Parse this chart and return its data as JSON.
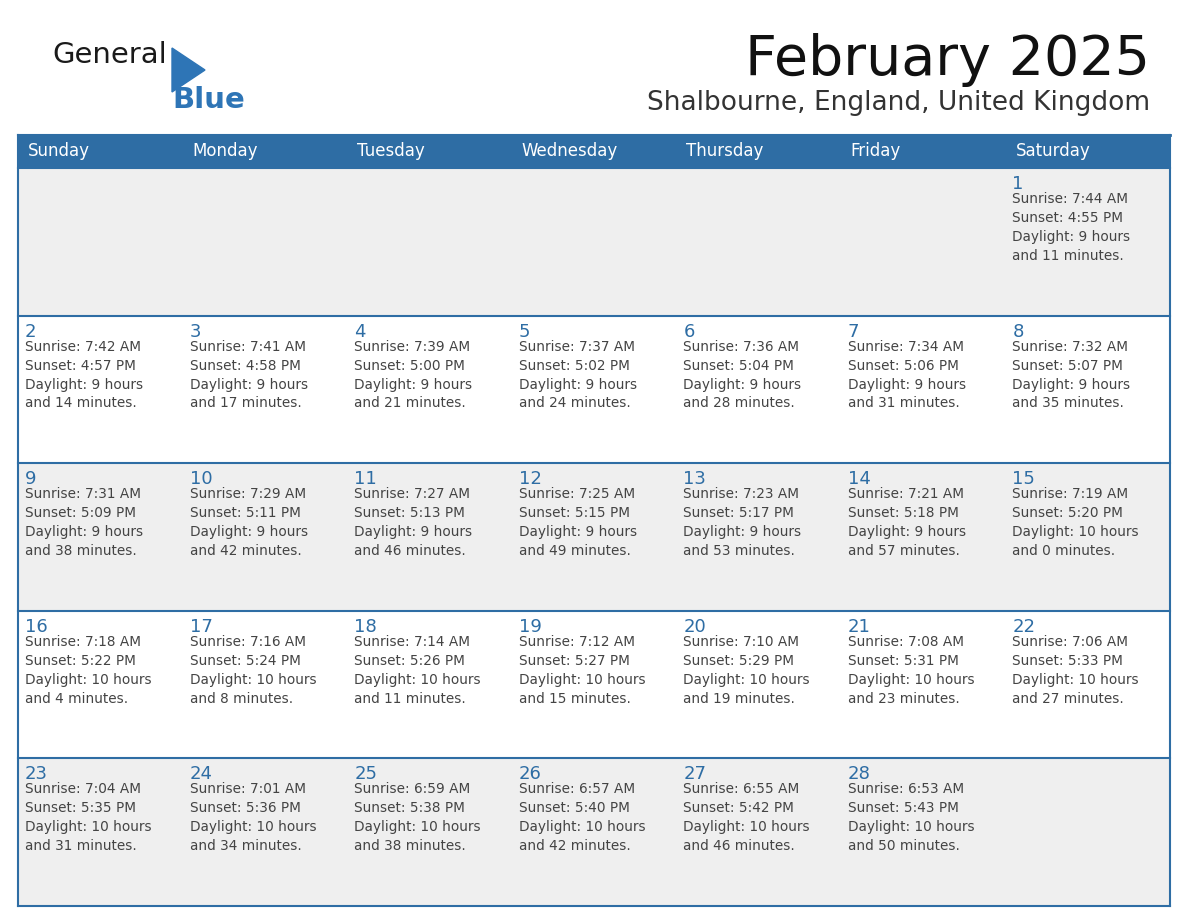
{
  "title": "February 2025",
  "subtitle": "Shalbourne, England, United Kingdom",
  "header_bg": "#2E6DA4",
  "header_text_color": "#FFFFFF",
  "cell_bg_odd": "#EFEFEF",
  "cell_bg_even": "#FFFFFF",
  "text_color": "#444444",
  "day_number_color": "#2E6DA4",
  "border_color": "#2E6DA4",
  "days_of_week": [
    "Sunday",
    "Monday",
    "Tuesday",
    "Wednesday",
    "Thursday",
    "Friday",
    "Saturday"
  ],
  "logo_general_color": "#1a1a1a",
  "logo_blue_color": "#2E75B6",
  "title_color": "#111111",
  "subtitle_color": "#333333",
  "calendar_data": [
    [
      null,
      null,
      null,
      null,
      null,
      null,
      {
        "day": 1,
        "sunrise": "7:44 AM",
        "sunset": "4:55 PM",
        "daylight1": "Daylight: 9 hours",
        "daylight2": "and 11 minutes."
      }
    ],
    [
      {
        "day": 2,
        "sunrise": "7:42 AM",
        "sunset": "4:57 PM",
        "daylight1": "Daylight: 9 hours",
        "daylight2": "and 14 minutes."
      },
      {
        "day": 3,
        "sunrise": "7:41 AM",
        "sunset": "4:58 PM",
        "daylight1": "Daylight: 9 hours",
        "daylight2": "and 17 minutes."
      },
      {
        "day": 4,
        "sunrise": "7:39 AM",
        "sunset": "5:00 PM",
        "daylight1": "Daylight: 9 hours",
        "daylight2": "and 21 minutes."
      },
      {
        "day": 5,
        "sunrise": "7:37 AM",
        "sunset": "5:02 PM",
        "daylight1": "Daylight: 9 hours",
        "daylight2": "and 24 minutes."
      },
      {
        "day": 6,
        "sunrise": "7:36 AM",
        "sunset": "5:04 PM",
        "daylight1": "Daylight: 9 hours",
        "daylight2": "and 28 minutes."
      },
      {
        "day": 7,
        "sunrise": "7:34 AM",
        "sunset": "5:06 PM",
        "daylight1": "Daylight: 9 hours",
        "daylight2": "and 31 minutes."
      },
      {
        "day": 8,
        "sunrise": "7:32 AM",
        "sunset": "5:07 PM",
        "daylight1": "Daylight: 9 hours",
        "daylight2": "and 35 minutes."
      }
    ],
    [
      {
        "day": 9,
        "sunrise": "7:31 AM",
        "sunset": "5:09 PM",
        "daylight1": "Daylight: 9 hours",
        "daylight2": "and 38 minutes."
      },
      {
        "day": 10,
        "sunrise": "7:29 AM",
        "sunset": "5:11 PM",
        "daylight1": "Daylight: 9 hours",
        "daylight2": "and 42 minutes."
      },
      {
        "day": 11,
        "sunrise": "7:27 AM",
        "sunset": "5:13 PM",
        "daylight1": "Daylight: 9 hours",
        "daylight2": "and 46 minutes."
      },
      {
        "day": 12,
        "sunrise": "7:25 AM",
        "sunset": "5:15 PM",
        "daylight1": "Daylight: 9 hours",
        "daylight2": "and 49 minutes."
      },
      {
        "day": 13,
        "sunrise": "7:23 AM",
        "sunset": "5:17 PM",
        "daylight1": "Daylight: 9 hours",
        "daylight2": "and 53 minutes."
      },
      {
        "day": 14,
        "sunrise": "7:21 AM",
        "sunset": "5:18 PM",
        "daylight1": "Daylight: 9 hours",
        "daylight2": "and 57 minutes."
      },
      {
        "day": 15,
        "sunrise": "7:19 AM",
        "sunset": "5:20 PM",
        "daylight1": "Daylight: 10 hours",
        "daylight2": "and 0 minutes."
      }
    ],
    [
      {
        "day": 16,
        "sunrise": "7:18 AM",
        "sunset": "5:22 PM",
        "daylight1": "Daylight: 10 hours",
        "daylight2": "and 4 minutes."
      },
      {
        "day": 17,
        "sunrise": "7:16 AM",
        "sunset": "5:24 PM",
        "daylight1": "Daylight: 10 hours",
        "daylight2": "and 8 minutes."
      },
      {
        "day": 18,
        "sunrise": "7:14 AM",
        "sunset": "5:26 PM",
        "daylight1": "Daylight: 10 hours",
        "daylight2": "and 11 minutes."
      },
      {
        "day": 19,
        "sunrise": "7:12 AM",
        "sunset": "5:27 PM",
        "daylight1": "Daylight: 10 hours",
        "daylight2": "and 15 minutes."
      },
      {
        "day": 20,
        "sunrise": "7:10 AM",
        "sunset": "5:29 PM",
        "daylight1": "Daylight: 10 hours",
        "daylight2": "and 19 minutes."
      },
      {
        "day": 21,
        "sunrise": "7:08 AM",
        "sunset": "5:31 PM",
        "daylight1": "Daylight: 10 hours",
        "daylight2": "and 23 minutes."
      },
      {
        "day": 22,
        "sunrise": "7:06 AM",
        "sunset": "5:33 PM",
        "daylight1": "Daylight: 10 hours",
        "daylight2": "and 27 minutes."
      }
    ],
    [
      {
        "day": 23,
        "sunrise": "7:04 AM",
        "sunset": "5:35 PM",
        "daylight1": "Daylight: 10 hours",
        "daylight2": "and 31 minutes."
      },
      {
        "day": 24,
        "sunrise": "7:01 AM",
        "sunset": "5:36 PM",
        "daylight1": "Daylight: 10 hours",
        "daylight2": "and 34 minutes."
      },
      {
        "day": 25,
        "sunrise": "6:59 AM",
        "sunset": "5:38 PM",
        "daylight1": "Daylight: 10 hours",
        "daylight2": "and 38 minutes."
      },
      {
        "day": 26,
        "sunrise": "6:57 AM",
        "sunset": "5:40 PM",
        "daylight1": "Daylight: 10 hours",
        "daylight2": "and 42 minutes."
      },
      {
        "day": 27,
        "sunrise": "6:55 AM",
        "sunset": "5:42 PM",
        "daylight1": "Daylight: 10 hours",
        "daylight2": "and 46 minutes."
      },
      {
        "day": 28,
        "sunrise": "6:53 AM",
        "sunset": "5:43 PM",
        "daylight1": "Daylight: 10 hours",
        "daylight2": "and 50 minutes."
      },
      null
    ]
  ]
}
